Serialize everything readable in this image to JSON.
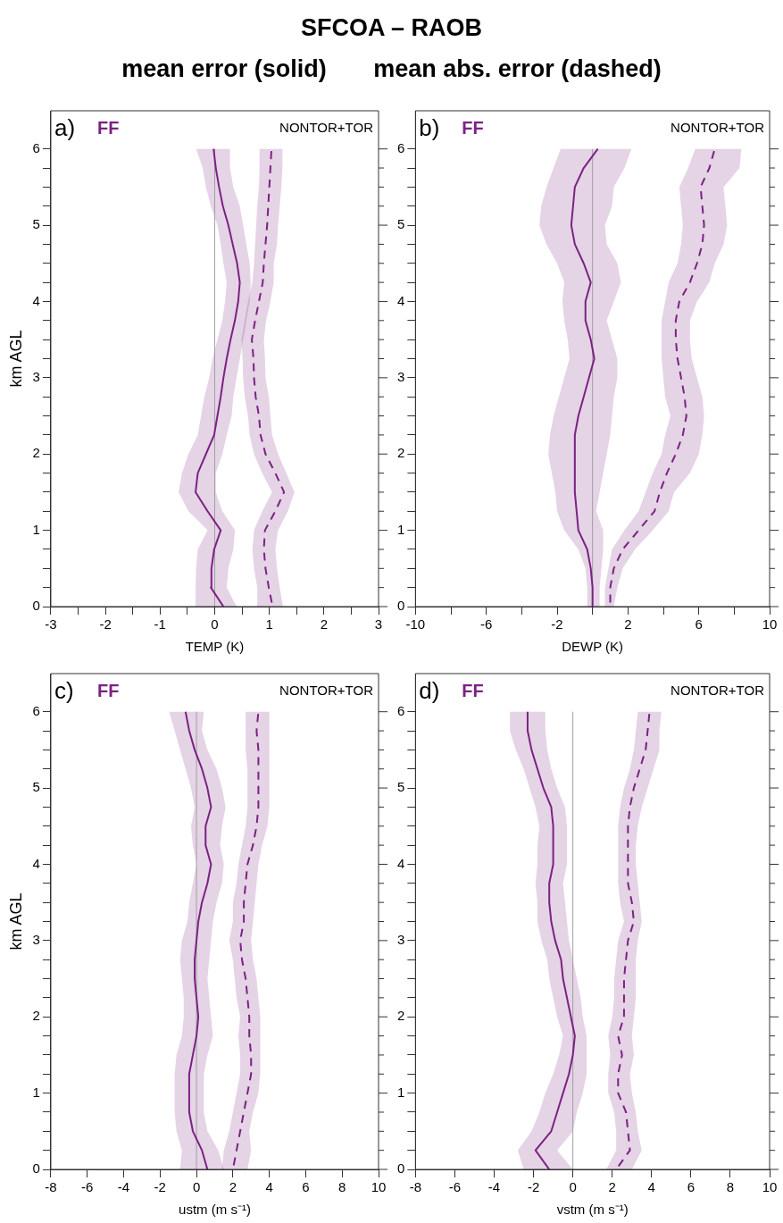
{
  "chart_data": [
    {
      "type": "line",
      "orientation": "horizontal",
      "title": "SFCOA – RAOB",
      "subtitle": "mean error (solid)       mean abs. error (dashed)",
      "xlabel": "TEMP (K)",
      "ylabel": "km AGL",
      "annotations": [
        "a)",
        "FF",
        "NONTOR+TOR"
      ],
      "marker": "none",
      "x": [
        0,
        0.25,
        0.5,
        0.75,
        1,
        1.25,
        1.5,
        1.75,
        2,
        2.25,
        2.5,
        2.75,
        3,
        3.25,
        3.5,
        3.75,
        4,
        4.25,
        4.5,
        4.75,
        5,
        5.25,
        5.5,
        5.75,
        6
      ],
      "series": [
        {
          "color": "#7b2282",
          "line_style": "solid",
          "values": [
            0.16,
            -0.07,
            -0.06,
            -0.01,
            0.11,
            -0.13,
            -0.35,
            -0.31,
            -0.16,
            -0.01,
            0.05,
            0.11,
            0.16,
            0.22,
            0.29,
            0.37,
            0.43,
            0.46,
            0.41,
            0.33,
            0.25,
            0.15,
            0.08,
            0.02,
            -0.02
          ],
          "lower": [
            -0.35,
            -0.35,
            -0.34,
            -0.31,
            -0.13,
            -0.48,
            -0.66,
            -0.6,
            -0.48,
            -0.31,
            -0.25,
            -0.19,
            -0.1,
            -0.04,
            0.05,
            0.14,
            0.19,
            0.22,
            0.16,
            0.11,
            0.05,
            -0.07,
            -0.16,
            -0.22,
            -0.34
          ],
          "upper": [
            0.4,
            0.22,
            0.25,
            0.34,
            0.37,
            0.14,
            0.02,
            0.02,
            0.14,
            0.22,
            0.31,
            0.34,
            0.4,
            0.46,
            0.52,
            0.58,
            0.64,
            0.66,
            0.64,
            0.58,
            0.52,
            0.46,
            0.34,
            0.28,
            0.28
          ]
        },
        {
          "color": "#7b2282",
          "line_style": "dashed",
          "values": [
            1.06,
            0.99,
            0.93,
            0.9,
            0.92,
            1.11,
            1.27,
            1.11,
            0.93,
            0.84,
            0.81,
            0.75,
            0.72,
            0.71,
            0.68,
            0.74,
            0.81,
            0.88,
            0.9,
            0.93,
            0.96,
            0.98,
            1.0,
            1.02,
            1.04
          ],
          "lower": [
            0.78,
            0.78,
            0.72,
            0.69,
            0.72,
            0.87,
            1.05,
            0.87,
            0.72,
            0.64,
            0.61,
            0.55,
            0.52,
            0.51,
            0.49,
            0.55,
            0.61,
            0.69,
            0.72,
            0.74,
            0.76,
            0.78,
            0.81,
            0.82,
            0.82
          ],
          "upper": [
            1.25,
            1.19,
            1.14,
            1.11,
            1.16,
            1.34,
            1.46,
            1.31,
            1.16,
            1.05,
            1.02,
            0.99,
            0.93,
            0.92,
            0.9,
            0.94,
            1.02,
            1.08,
            1.08,
            1.14,
            1.16,
            1.19,
            1.22,
            1.24,
            1.24
          ]
        }
      ],
      "ref_lines": [
        {
          "axis": "x",
          "value": 0,
          "color": "#a0a0a0"
        }
      ],
      "xlim": [
        -3,
        3
      ],
      "xticks": [
        -3,
        {
          "value": -2.5,
          "label": null
        },
        -2,
        {
          "value": -1.5,
          "label": null
        },
        -1,
        {
          "value": -0.5,
          "label": null
        },
        0,
        {
          "value": 0.5,
          "label": null
        },
        1,
        {
          "value": 1.5,
          "label": null
        },
        2,
        {
          "value": 2.5,
          "label": null
        },
        3
      ],
      "ylim": [
        0,
        6.5
      ],
      "yticks": [
        0,
        {
          "value": 0.25,
          "label": null
        },
        {
          "value": 0.5,
          "label": null
        },
        {
          "value": 0.75,
          "label": null
        },
        1,
        {
          "value": 1.25,
          "label": null
        },
        {
          "value": 1.5,
          "label": null
        },
        {
          "value": 1.75,
          "label": null
        },
        2,
        {
          "value": 2.25,
          "label": null
        },
        {
          "value": 2.5,
          "label": null
        },
        {
          "value": 2.75,
          "label": null
        },
        3,
        {
          "value": 3.25,
          "label": null
        },
        {
          "value": 3.5,
          "label": null
        },
        {
          "value": 3.75,
          "label": null
        },
        4,
        {
          "value": 4.25,
          "label": null
        },
        {
          "value": 4.5,
          "label": null
        },
        {
          "value": 4.75,
          "label": null
        },
        5,
        {
          "value": 5.25,
          "label": null
        },
        {
          "value": 5.5,
          "label": null
        },
        {
          "value": 5.75,
          "label": null
        },
        6
      ]
    },
    {
      "type": "line",
      "orientation": "horizontal",
      "xlabel": "DEWP (K)",
      "annotations": [
        "b)",
        "FF",
        "NONTOR+TOR"
      ],
      "marker": "none",
      "x": [
        0,
        0.25,
        0.5,
        0.75,
        1,
        1.25,
        1.5,
        1.75,
        2,
        2.25,
        2.5,
        2.75,
        3,
        3.25,
        3.5,
        3.75,
        4,
        4.25,
        4.5,
        4.75,
        5,
        5.25,
        5.5,
        5.75,
        6
      ],
      "series": [
        {
          "color": "#7b2282",
          "line_style": "solid",
          "values": [
            0.0,
            0.0,
            -0.1,
            -0.3,
            -0.8,
            -0.9,
            -1.0,
            -1.0,
            -1.0,
            -1.0,
            -0.8,
            -0.5,
            -0.2,
            0.1,
            -0.1,
            -0.4,
            -0.4,
            -0.1,
            -0.5,
            -1.0,
            -1.2,
            -1.1,
            -1.0,
            -0.5,
            0.3
          ],
          "lower": [
            -0.3,
            -0.3,
            -0.4,
            -0.8,
            -1.6,
            -2.0,
            -2.1,
            -2.3,
            -2.5,
            -2.4,
            -2.2,
            -1.9,
            -1.6,
            -1.3,
            -1.4,
            -1.6,
            -1.7,
            -1.6,
            -2.0,
            -2.6,
            -3.0,
            -2.9,
            -2.6,
            -2.2,
            -1.8
          ],
          "upper": [
            0.4,
            0.4,
            0.5,
            0.6,
            0.6,
            0.2,
            0.4,
            0.6,
            0.8,
            1.0,
            1.1,
            1.2,
            1.4,
            1.4,
            1.1,
            0.8,
            1.2,
            1.6,
            1.4,
            0.8,
            0.7,
            1.1,
            1.2,
            1.8,
            2.2
          ]
        },
        {
          "color": "#7b2282",
          "line_style": "dashed",
          "values": [
            1.0,
            1.0,
            1.2,
            1.7,
            2.6,
            3.5,
            3.8,
            4.2,
            4.7,
            5.1,
            5.3,
            5.2,
            5.0,
            4.8,
            4.7,
            4.7,
            4.9,
            5.5,
            5.9,
            6.2,
            6.3,
            6.2,
            6.1,
            6.6,
            6.9
          ],
          "lower": [
            0.7,
            0.7,
            0.9,
            1.1,
            1.8,
            2.6,
            3.0,
            3.4,
            3.9,
            4.1,
            4.4,
            4.1,
            4.0,
            3.9,
            3.9,
            3.9,
            4.1,
            4.3,
            4.8,
            5.0,
            5.1,
            5.0,
            4.9,
            5.4,
            5.8
          ],
          "upper": [
            1.2,
            1.4,
            1.7,
            2.4,
            3.4,
            4.3,
            4.6,
            5.5,
            6.0,
            6.2,
            6.3,
            6.2,
            5.9,
            5.6,
            5.5,
            5.5,
            5.9,
            6.6,
            6.9,
            7.4,
            7.6,
            7.5,
            7.4,
            8.3,
            8.4
          ]
        }
      ],
      "ref_lines": [
        {
          "axis": "x",
          "value": 0,
          "color": "#a0a0a0"
        }
      ],
      "xlim": [
        -10,
        10
      ],
      "xticks": [
        -10,
        {
          "value": -8,
          "label": null
        },
        -6,
        {
          "value": -4,
          "label": null
        },
        -2,
        {
          "value": 0,
          "label": null
        },
        2,
        {
          "value": 4,
          "label": null
        },
        6,
        {
          "value": 8,
          "label": null
        },
        10
      ],
      "ylim": [
        0,
        6.5
      ],
      "yticks": [
        0,
        {
          "value": 0.25,
          "label": null
        },
        {
          "value": 0.5,
          "label": null
        },
        {
          "value": 0.75,
          "label": null
        },
        1,
        {
          "value": 1.25,
          "label": null
        },
        {
          "value": 1.5,
          "label": null
        },
        {
          "value": 1.75,
          "label": null
        },
        2,
        {
          "value": 2.25,
          "label": null
        },
        {
          "value": 2.5,
          "label": null
        },
        {
          "value": 2.75,
          "label": null
        },
        3,
        {
          "value": 3.25,
          "label": null
        },
        {
          "value": 3.5,
          "label": null
        },
        {
          "value": 3.75,
          "label": null
        },
        4,
        {
          "value": 4.25,
          "label": null
        },
        {
          "value": 4.5,
          "label": null
        },
        {
          "value": 4.75,
          "label": null
        },
        5,
        {
          "value": 5.25,
          "label": null
        },
        {
          "value": 5.5,
          "label": null
        },
        {
          "value": 5.75,
          "label": null
        },
        6
      ]
    },
    {
      "type": "line",
      "orientation": "horizontal",
      "xlabel": "ustm (m s⁻¹)",
      "ylabel": "km AGL",
      "annotations": [
        "c)",
        "FF",
        "NONTOR+TOR"
      ],
      "marker": "none",
      "x": [
        0,
        0.25,
        0.5,
        0.75,
        1,
        1.25,
        1.5,
        1.75,
        2,
        2.25,
        2.5,
        2.75,
        3,
        3.25,
        3.5,
        3.75,
        4,
        4.25,
        4.5,
        4.75,
        5,
        5.25,
        5.5,
        5.75,
        6
      ],
      "series": [
        {
          "color": "#7b2282",
          "line_style": "solid",
          "values": [
            0.6,
            0.3,
            -0.2,
            -0.4,
            -0.4,
            -0.4,
            -0.2,
            0.0,
            0.1,
            0.0,
            -0.1,
            -0.1,
            0.0,
            0.1,
            0.3,
            0.6,
            0.8,
            0.5,
            0.5,
            0.8,
            0.6,
            0.3,
            -0.1,
            -0.4,
            -0.6
          ],
          "lower": [
            -0.9,
            -0.8,
            -1.1,
            -1.2,
            -1.2,
            -1.2,
            -1.1,
            -0.8,
            -0.7,
            -0.7,
            -0.8,
            -0.9,
            -0.8,
            -0.5,
            -0.4,
            -0.2,
            0.0,
            -0.2,
            -0.3,
            -0.1,
            -0.3,
            -0.6,
            -0.9,
            -1.2,
            -1.5
          ],
          "upper": [
            1.5,
            1.2,
            0.6,
            0.4,
            0.4,
            0.4,
            0.6,
            0.9,
            0.8,
            0.7,
            0.6,
            0.7,
            0.8,
            0.9,
            1.1,
            1.4,
            1.5,
            1.3,
            1.4,
            1.6,
            1.4,
            1.1,
            0.6,
            0.3,
            0.4
          ]
        },
        {
          "color": "#7b2282",
          "line_style": "dashed",
          "values": [
            2.0,
            2.2,
            2.4,
            2.6,
            2.8,
            3.0,
            3.0,
            2.9,
            2.9,
            2.8,
            2.7,
            2.5,
            2.4,
            2.6,
            2.6,
            2.7,
            2.8,
            3.1,
            3.3,
            3.4,
            3.4,
            3.4,
            3.4,
            3.3,
            3.4
          ],
          "lower": [
            1.4,
            1.5,
            1.8,
            2.0,
            2.2,
            2.4,
            2.4,
            2.3,
            2.4,
            2.2,
            2.1,
            2.0,
            1.8,
            2.0,
            2.0,
            2.2,
            2.3,
            2.5,
            2.7,
            2.8,
            2.8,
            2.8,
            2.7,
            2.7,
            2.7
          ],
          "upper": [
            2.8,
            3.0,
            2.9,
            3.1,
            3.4,
            3.5,
            3.5,
            3.5,
            3.5,
            3.4,
            3.3,
            3.1,
            3.0,
            3.1,
            3.2,
            3.3,
            3.4,
            3.6,
            3.9,
            4.0,
            4.0,
            4.0,
            4.0,
            4.0,
            4.0
          ]
        }
      ],
      "ref_lines": [
        {
          "axis": "x",
          "value": 0,
          "color": "#a0a0a0"
        }
      ],
      "xlim": [
        -8,
        10
      ],
      "xticks": [
        -8,
        -6,
        -4,
        -2,
        0,
        2,
        4,
        6,
        8,
        10
      ],
      "ylim": [
        0,
        6.5
      ],
      "yticks": [
        0,
        {
          "value": 0.25,
          "label": null
        },
        {
          "value": 0.5,
          "label": null
        },
        {
          "value": 0.75,
          "label": null
        },
        1,
        {
          "value": 1.25,
          "label": null
        },
        {
          "value": 1.5,
          "label": null
        },
        {
          "value": 1.75,
          "label": null
        },
        2,
        {
          "value": 2.25,
          "label": null
        },
        {
          "value": 2.5,
          "label": null
        },
        {
          "value": 2.75,
          "label": null
        },
        3,
        {
          "value": 3.25,
          "label": null
        },
        {
          "value": 3.5,
          "label": null
        },
        {
          "value": 3.75,
          "label": null
        },
        4,
        {
          "value": 4.25,
          "label": null
        },
        {
          "value": 4.5,
          "label": null
        },
        {
          "value": 4.75,
          "label": null
        },
        5,
        {
          "value": 5.25,
          "label": null
        },
        {
          "value": 5.5,
          "label": null
        },
        {
          "value": 5.75,
          "label": null
        },
        6
      ]
    },
    {
      "type": "line",
      "orientation": "horizontal",
      "xlabel": "vstm (m s⁻¹)",
      "annotations": [
        "d)",
        "FF",
        "NONTOR+TOR"
      ],
      "marker": "none",
      "x": [
        0,
        0.25,
        0.5,
        0.75,
        1,
        1.25,
        1.5,
        1.75,
        2,
        2.25,
        2.5,
        2.75,
        3,
        3.25,
        3.5,
        3.75,
        4,
        4.25,
        4.5,
        4.75,
        5,
        5.25,
        5.5,
        5.75,
        6
      ],
      "series": [
        {
          "color": "#7b2282",
          "line_style": "solid",
          "values": [
            -1.2,
            -1.9,
            -1.1,
            -0.8,
            -0.5,
            -0.2,
            0.0,
            0.1,
            -0.1,
            -0.3,
            -0.5,
            -0.6,
            -0.9,
            -1.1,
            -1.2,
            -1.2,
            -1.0,
            -1.0,
            -1.0,
            -1.1,
            -1.5,
            -1.8,
            -2.1,
            -2.3,
            -2.3
          ],
          "lower": [
            -2.5,
            -2.8,
            -2.1,
            -1.7,
            -1.4,
            -1.0,
            -0.7,
            -0.5,
            -0.8,
            -1.0,
            -1.2,
            -1.3,
            -1.6,
            -1.8,
            -1.8,
            -1.9,
            -1.8,
            -1.8,
            -1.7,
            -1.9,
            -2.2,
            -2.5,
            -2.9,
            -3.2,
            -3.2
          ],
          "upper": [
            0.0,
            -0.8,
            0.0,
            0.2,
            0.5,
            0.7,
            0.7,
            0.7,
            0.5,
            0.4,
            0.2,
            0.0,
            -0.2,
            -0.3,
            -0.4,
            -0.5,
            -0.3,
            -0.3,
            -0.3,
            -0.4,
            -0.8,
            -1.1,
            -1.3,
            -1.4,
            -1.4
          ]
        },
        {
          "color": "#7b2282",
          "line_style": "dashed",
          "values": [
            2.2,
            2.9,
            2.8,
            2.7,
            2.3,
            2.3,
            2.5,
            2.3,
            2.6,
            2.6,
            2.6,
            2.7,
            2.8,
            3.1,
            3.0,
            2.8,
            2.8,
            2.8,
            2.8,
            2.9,
            3.1,
            3.4,
            3.7,
            3.8,
            3.9
          ],
          "lower": [
            1.7,
            2.2,
            2.2,
            2.1,
            1.8,
            1.8,
            1.9,
            1.8,
            2.0,
            2.1,
            2.1,
            2.2,
            2.3,
            2.6,
            2.4,
            2.3,
            2.3,
            2.3,
            2.3,
            2.4,
            2.6,
            2.9,
            3.1,
            3.2,
            3.3
          ],
          "upper": [
            3.0,
            3.5,
            3.3,
            3.2,
            3.0,
            2.9,
            3.1,
            3.0,
            3.1,
            3.2,
            3.2,
            3.2,
            3.3,
            3.5,
            3.4,
            3.3,
            3.2,
            3.2,
            3.3,
            3.5,
            3.8,
            4.1,
            4.4,
            4.4,
            4.5
          ]
        }
      ],
      "ref_lines": [
        {
          "axis": "x",
          "value": 0,
          "color": "#a0a0a0"
        }
      ],
      "xlim": [
        -8,
        10
      ],
      "xticks": [
        -8,
        -6,
        -4,
        -2,
        0,
        2,
        4,
        6,
        8,
        10
      ],
      "ylim": [
        0,
        6.5
      ],
      "yticks": [
        0,
        {
          "value": 0.25,
          "label": null
        },
        {
          "value": 0.5,
          "label": null
        },
        {
          "value": 0.75,
          "label": null
        },
        1,
        {
          "value": 1.25,
          "label": null
        },
        {
          "value": 1.5,
          "label": null
        },
        {
          "value": 1.75,
          "label": null
        },
        2,
        {
          "value": 2.25,
          "label": null
        },
        {
          "value": 2.5,
          "label": null
        },
        {
          "value": 2.75,
          "label": null
        },
        3,
        {
          "value": 3.25,
          "label": null
        },
        {
          "value": 3.5,
          "label": null
        },
        {
          "value": 3.75,
          "label": null
        },
        4,
        {
          "value": 4.25,
          "label": null
        },
        {
          "value": 4.5,
          "label": null
        },
        {
          "value": 4.75,
          "label": null
        },
        5,
        {
          "value": 5.25,
          "label": null
        },
        {
          "value": 5.5,
          "label": null
        },
        {
          "value": 5.75,
          "label": null
        },
        6
      ]
    }
  ]
}
